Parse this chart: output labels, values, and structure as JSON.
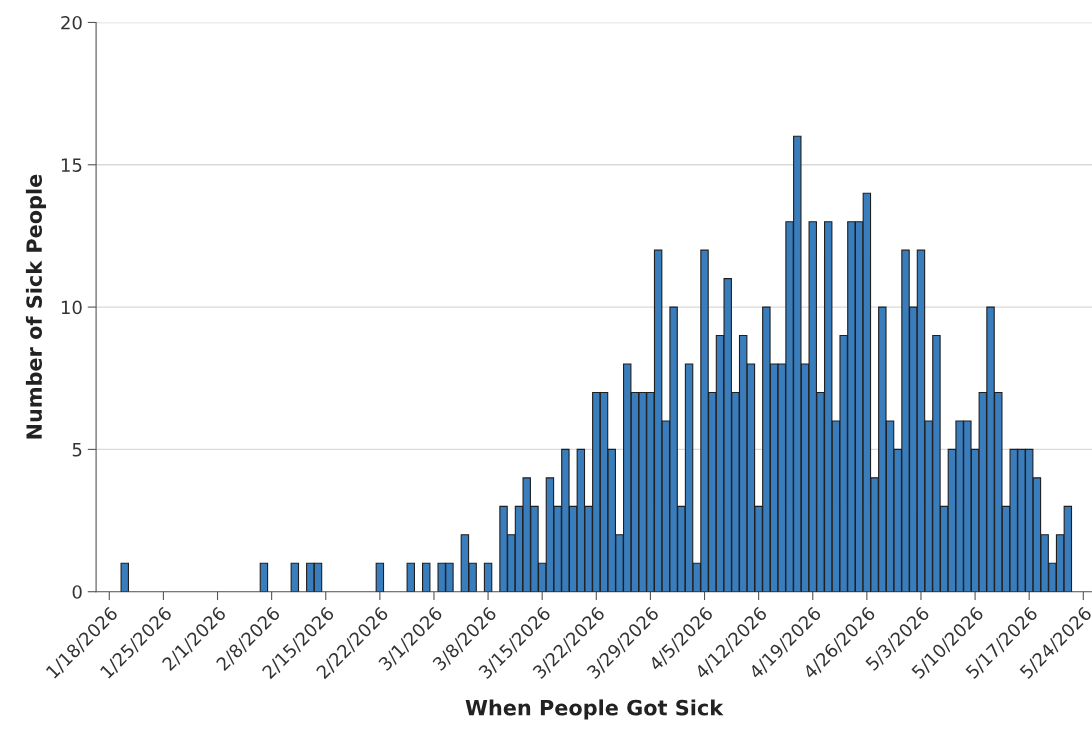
{
  "chart_data": {
    "type": "bar",
    "xlabel": "When People Got Sick",
    "ylabel": "Number of Sick People",
    "x": [
      "2026-01-20",
      "2026-02-07",
      "2026-02-11",
      "2026-02-13",
      "2026-02-14",
      "2026-02-22",
      "2026-02-26",
      "2026-02-28",
      "2026-03-02",
      "2026-03-03",
      "2026-03-05",
      "2026-03-06",
      "2026-03-08",
      "2026-03-10",
      "2026-03-11",
      "2026-03-12",
      "2026-03-13",
      "2026-03-14",
      "2026-03-15",
      "2026-03-16",
      "2026-03-17",
      "2026-03-18",
      "2026-03-19",
      "2026-03-20",
      "2026-03-21",
      "2026-03-22",
      "2026-03-23",
      "2026-03-24",
      "2026-03-25",
      "2026-03-26",
      "2026-03-27",
      "2026-03-28",
      "2026-03-29",
      "2026-03-30",
      "2026-03-31",
      "2026-04-01",
      "2026-04-02",
      "2026-04-03",
      "2026-04-04",
      "2026-04-05",
      "2026-04-06",
      "2026-04-07",
      "2026-04-08",
      "2026-04-09",
      "2026-04-10",
      "2026-04-11",
      "2026-04-12",
      "2026-04-13",
      "2026-04-14",
      "2026-04-15",
      "2026-04-16",
      "2026-04-17",
      "2026-04-18",
      "2026-04-19",
      "2026-04-20",
      "2026-04-21",
      "2026-04-22",
      "2026-04-23",
      "2026-04-24",
      "2026-04-25",
      "2026-04-26",
      "2026-04-27",
      "2026-04-28",
      "2026-04-29",
      "2026-04-30",
      "2026-05-01",
      "2026-05-02",
      "2026-05-03",
      "2026-05-04",
      "2026-05-05",
      "2026-05-06",
      "2026-05-07",
      "2026-05-08",
      "2026-05-09",
      "2026-05-10",
      "2026-05-11",
      "2026-05-12",
      "2026-05-13",
      "2026-05-14",
      "2026-05-15",
      "2026-05-16",
      "2026-05-17",
      "2026-05-18",
      "2026-05-19",
      "2026-05-20",
      "2026-05-21",
      "2026-05-22"
    ],
    "values": [
      1,
      1,
      1,
      1,
      1,
      1,
      1,
      1,
      1,
      1,
      2,
      1,
      1,
      3,
      2,
      3,
      4,
      3,
      1,
      4,
      3,
      5,
      3,
      5,
      3,
      7,
      7,
      5,
      2,
      8,
      7,
      7,
      7,
      12,
      6,
      10,
      3,
      8,
      1,
      12,
      7,
      9,
      11,
      7,
      9,
      8,
      3,
      10,
      8,
      8,
      13,
      16,
      8,
      13,
      7,
      13,
      6,
      9,
      13,
      13,
      14,
      4,
      10,
      6,
      5,
      12,
      10,
      12,
      6,
      9,
      3,
      5,
      6,
      6,
      5,
      7,
      10,
      7,
      3,
      5,
      5,
      5,
      4,
      2,
      1,
      2,
      3
    ],
    "color": "#3a7dbd",
    "xlim": [
      "2026-01-16T07:00",
      "2026-05-25T03:00"
    ],
    "xticks": [
      {
        "value": "2026-01-18",
        "label": "1/18/2026"
      },
      {
        "value": "2026-01-25",
        "label": "1/25/2026"
      },
      {
        "value": "2026-02-01",
        "label": "2/1/2026"
      },
      {
        "value": "2026-02-08",
        "label": "2/8/2026"
      },
      {
        "value": "2026-02-15",
        "label": "2/15/2026"
      },
      {
        "value": "2026-02-22",
        "label": "2/22/2026"
      },
      {
        "value": "2026-03-01",
        "label": "3/1/2026"
      },
      {
        "value": "2026-03-08",
        "label": "3/8/2026"
      },
      {
        "value": "2026-03-15",
        "label": "3/15/2026"
      },
      {
        "value": "2026-03-22",
        "label": "3/22/2026"
      },
      {
        "value": "2026-03-29",
        "label": "3/29/2026"
      },
      {
        "value": "2026-04-05",
        "label": "4/5/2026"
      },
      {
        "value": "2026-04-12",
        "label": "4/12/2026"
      },
      {
        "value": "2026-04-19",
        "label": "4/19/2026"
      },
      {
        "value": "2026-04-26",
        "label": "4/26/2026"
      },
      {
        "value": "2026-05-03",
        "label": "5/3/2026"
      },
      {
        "value": "2026-05-10",
        "label": "5/10/2026"
      },
      {
        "value": "2026-05-17",
        "label": "5/17/2026"
      },
      {
        "value": "2026-05-24",
        "label": "5/24/2026"
      }
    ],
    "ylim": [
      0,
      20
    ],
    "yticks": [
      0,
      5,
      10,
      15,
      20
    ],
    "grid": "y"
  }
}
